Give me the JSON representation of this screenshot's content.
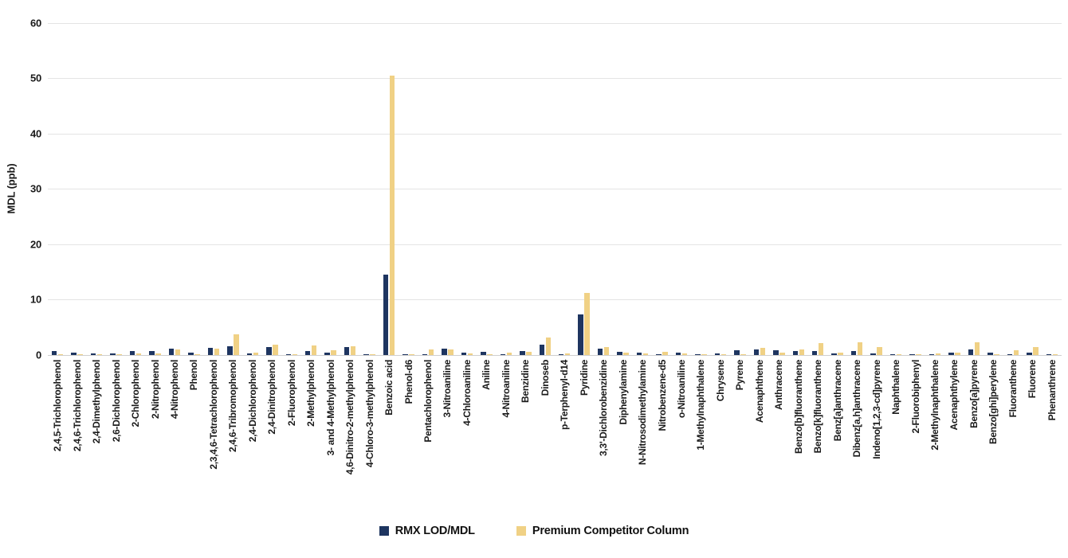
{
  "chart_data": {
    "type": "bar",
    "title": "",
    "xlabel": "",
    "ylabel": "MDL (ppb)",
    "ylim": [
      0,
      60
    ],
    "yticks": [
      0,
      10,
      20,
      30,
      40,
      50,
      60
    ],
    "grid": true,
    "legend_position": "bottom",
    "categories": [
      "2,4,5-Trichlorophenol",
      "2,4,6-Trichlorophenol",
      "2,4-Dimethylphenol",
      "2,6-Dichlorophenol",
      "2-Chlorophenol",
      "2-Nitrophenol",
      "4-Nitrophenol",
      "Phenol",
      "2,3,4,6-Tetrachlorophenol",
      "2,4,6-Tribromophenol",
      "2,4-Dichlorophenol",
      "2,4-Dinitrophenol",
      "2-Fluorophenol",
      "2-Methylphenol",
      "3- and 4-Methylphenol",
      "4,6-Dinitro-2-methylphenol",
      "4-Chloro-3-methylphenol",
      "Benzoic acid",
      "Phenol-d6",
      "Pentachlorophenol",
      "3-Nitroaniline",
      "4-Chloroaniline",
      "Aniline",
      "4-Nitroaniline",
      "Benzidine",
      "Dinoseb",
      "p-Terphenyl-d14",
      "Pyridine",
      "3,3'-Dichlorobenzidine",
      "Diphenylamine",
      "N-Nitrosodimethylamine",
      "Nitrobenzene-d5",
      "o-Nitroaniline",
      "1-Methylnaphthalene",
      "Chrysene",
      "Pyrene",
      "Acenaphthene",
      "Anthracene",
      "Benzo[b]fluoranthene",
      "Benzo[k]fluoranthene",
      "Benz[a]anthracene",
      "Dibenz[a,h]anthracene",
      "Indeno[1,2,3-cd]pyrene",
      "Naphthalene",
      "2-Fluorobiphenyl",
      "2-Methylnaphthalene",
      "Acenaphthylene",
      "Benzo[a]pyrene",
      "Benzo[ghi]perylene",
      "Fluoranthene",
      "Fluorene",
      "Phenanthrene"
    ],
    "series": [
      {
        "name": "RMX LOD/MDL",
        "color": "#1e3560",
        "values": [
          0.75,
          0.4,
          0.3,
          0.25,
          0.65,
          0.75,
          1.2,
          0.5,
          1.3,
          1.6,
          0.3,
          1.45,
          0.1,
          0.65,
          0.45,
          1.4,
          0.05,
          14.5,
          0.15,
          0.1,
          1.15,
          0.5,
          0.55,
          0.2,
          0.7,
          1.85,
          0.2,
          7.4,
          1.15,
          0.55,
          0.4,
          0.1,
          0.4,
          0.15,
          0.3,
          0.8,
          0.95,
          0.85,
          0.75,
          0.65,
          0.3,
          0.75,
          0.35,
          0.1,
          0.15,
          0.2,
          0.45,
          1.0,
          0.4,
          0.2,
          0.45,
          0.15
        ]
      },
      {
        "name": "Premium Competitor Column",
        "color": "#f0d185",
        "values": [
          0.15,
          0.1,
          0.1,
          0.1,
          0.3,
          0.35,
          1.05,
          0.15,
          1.2,
          3.7,
          0.45,
          1.85,
          0.05,
          1.7,
          0.8,
          1.65,
          0.05,
          50.5,
          0.1,
          0.95,
          1.0,
          0.3,
          0.2,
          0.4,
          0.55,
          3.1,
          0.25,
          11.2,
          1.5,
          0.4,
          0.3,
          0.6,
          0.25,
          0.1,
          0.05,
          0.1,
          1.25,
          0.45,
          1.0,
          2.2,
          0.45,
          2.35,
          1.45,
          0.2,
          0.1,
          0.25,
          0.5,
          2.3,
          0.1,
          0.8,
          1.4,
          0.1
        ]
      }
    ]
  },
  "colors": {
    "background": "#ffffff",
    "gridline": "#e4e4e4",
    "axis_line": "#cfcfcf",
    "text": "#1a1a1a"
  }
}
